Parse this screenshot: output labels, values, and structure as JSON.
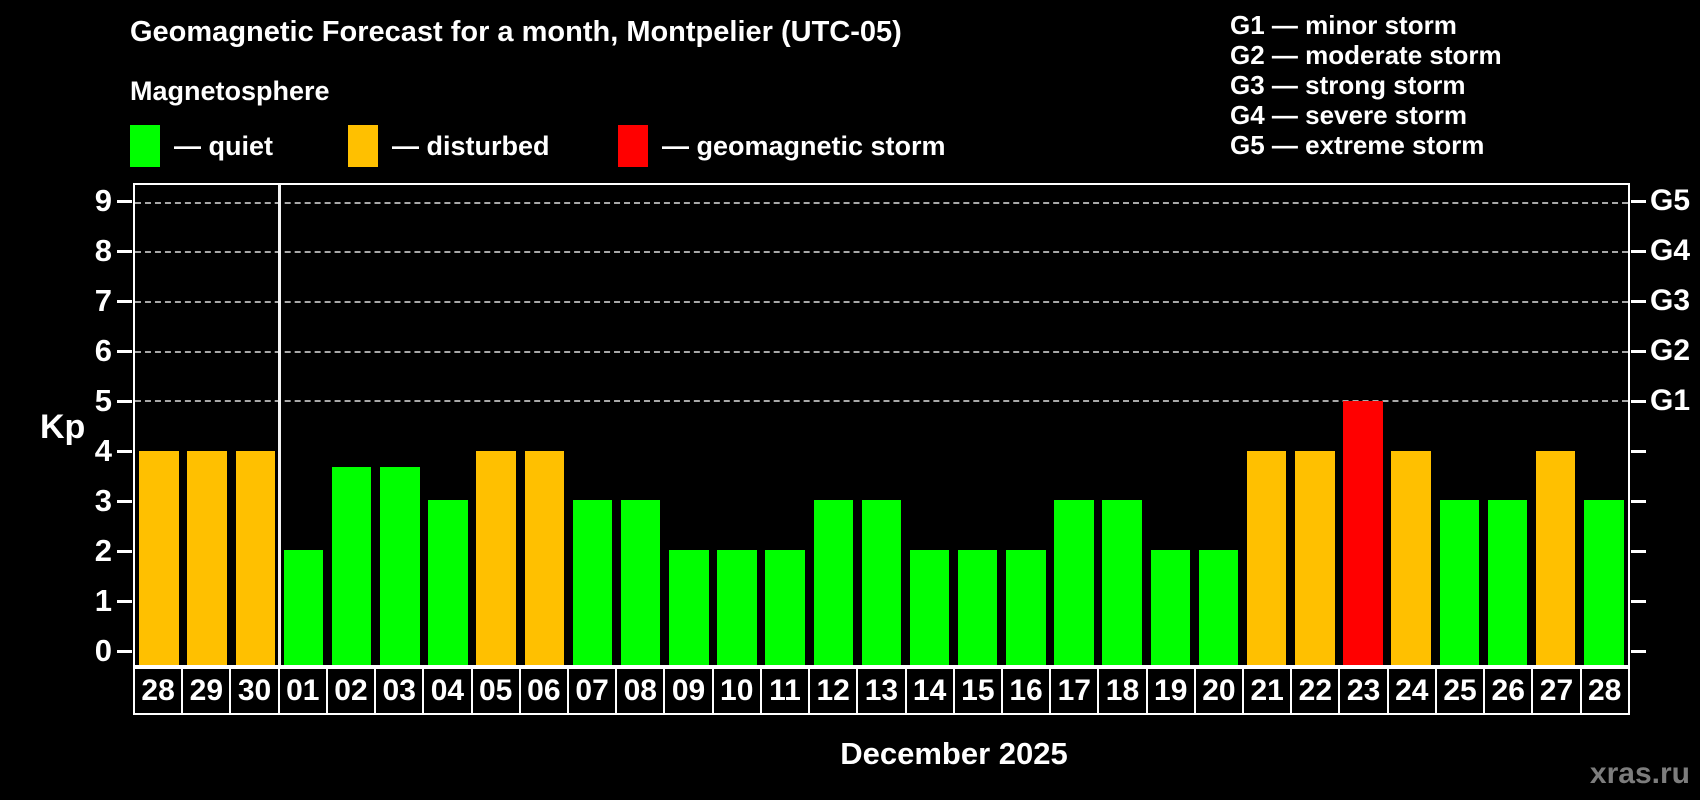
{
  "header": {
    "title": "Geomagnetic Forecast for a month, Montpelier (UTC-05)",
    "subtitle": "Magnetosphere"
  },
  "legend": {
    "items": [
      {
        "name": "quiet",
        "label": "— quiet",
        "color": "#00ff00"
      },
      {
        "name": "disturbed",
        "label": "— disturbed",
        "color": "#ffc000"
      },
      {
        "name": "storm",
        "label": "— geomagnetic storm",
        "color": "#ff0000"
      }
    ]
  },
  "g_legend": {
    "lines": [
      "G1 — minor storm",
      "G2 — moderate storm",
      "G3 — strong storm",
      "G4 — severe storm",
      "G5 — extreme storm"
    ]
  },
  "chart_data": {
    "type": "bar",
    "title": "Geomagnetic Forecast for a month, Montpelier (UTC-05)",
    "subtitle": "Magnetosphere",
    "ylabel": "Kp",
    "xlabel": "December 2025",
    "categories": [
      "28",
      "29",
      "30",
      "01",
      "02",
      "03",
      "04",
      "05",
      "06",
      "07",
      "08",
      "09",
      "10",
      "11",
      "12",
      "13",
      "14",
      "15",
      "16",
      "17",
      "18",
      "19",
      "20",
      "21",
      "22",
      "23",
      "24",
      "25",
      "26",
      "27",
      "28"
    ],
    "values": [
      4,
      4,
      4,
      2,
      3.67,
      3.67,
      3,
      4,
      4,
      3,
      3,
      2,
      2,
      2,
      3,
      3,
      2,
      2,
      2,
      3,
      3,
      2,
      2,
      4,
      4,
      5,
      4,
      3,
      3,
      4,
      3
    ],
    "states": [
      "disturbed",
      "disturbed",
      "disturbed",
      "quiet",
      "quiet",
      "quiet",
      "quiet",
      "disturbed",
      "disturbed",
      "quiet",
      "quiet",
      "quiet",
      "quiet",
      "quiet",
      "quiet",
      "quiet",
      "quiet",
      "quiet",
      "quiet",
      "quiet",
      "quiet",
      "quiet",
      "quiet",
      "disturbed",
      "disturbed",
      "storm",
      "disturbed",
      "quiet",
      "quiet",
      "disturbed",
      "quiet"
    ],
    "state_colors": {
      "quiet": "#00ff00",
      "disturbed": "#ffc000",
      "storm": "#ff0000"
    },
    "ylim": [
      -0.32,
      9.36
    ],
    "yticks": [
      0,
      1,
      2,
      3,
      4,
      5,
      6,
      7,
      8,
      9
    ],
    "grid_levels": [
      5,
      6,
      7,
      8,
      9
    ],
    "right_axis": [
      {
        "kp": 5,
        "label": "G1"
      },
      {
        "kp": 6,
        "label": "G2"
      },
      {
        "kp": 7,
        "label": "G3"
      },
      {
        "kp": 8,
        "label": "G4"
      },
      {
        "kp": 9,
        "label": "G5"
      }
    ],
    "month_separator_after_index": 2,
    "legend_position": "top",
    "grid": "dashed horizontal at storm levels only"
  },
  "footer": {
    "month_label": "December 2025",
    "watermark": "xras.ru"
  }
}
